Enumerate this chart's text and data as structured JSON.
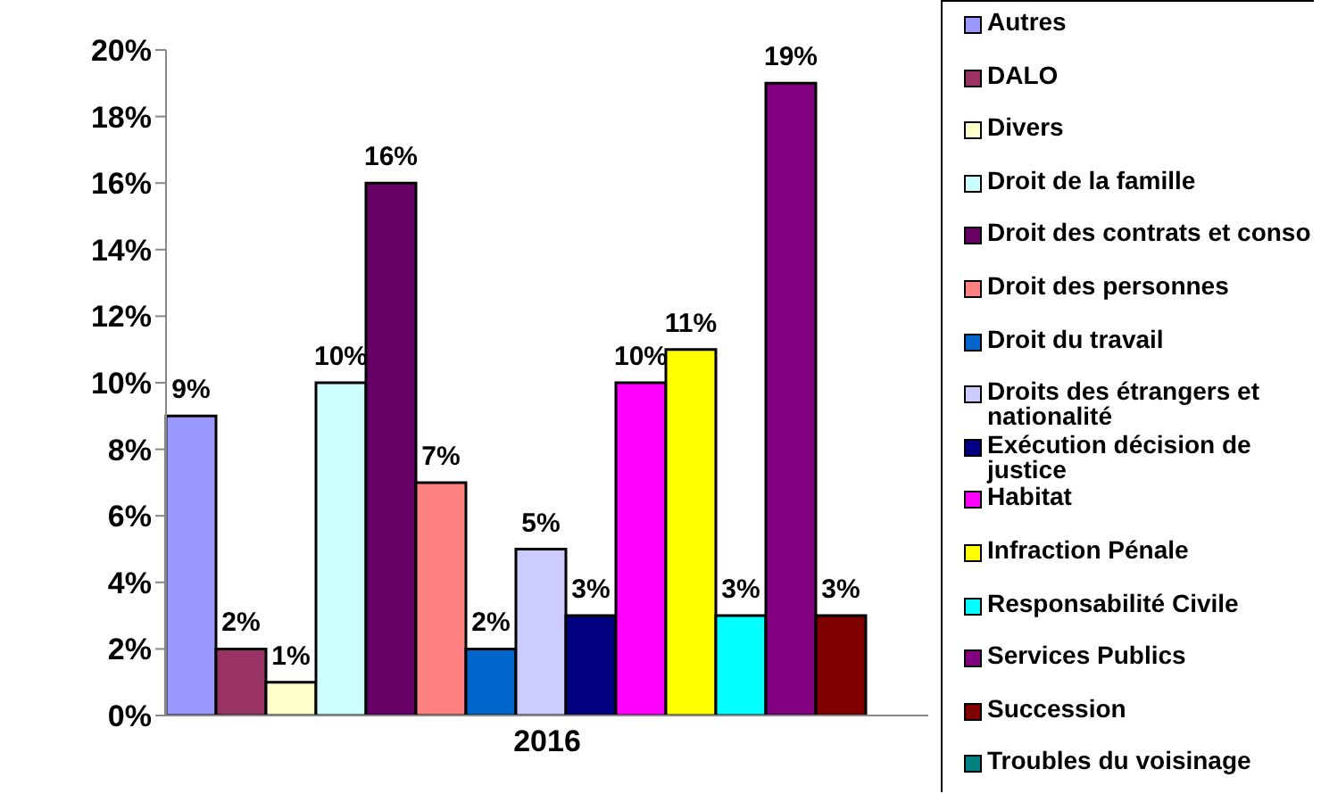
{
  "chart_data": {
    "type": "bar",
    "categories": [
      "2016"
    ],
    "ylim": [
      0,
      20
    ],
    "yticks": [
      {
        "value": 0,
        "label": "0%"
      },
      {
        "value": 2,
        "label": "2%"
      },
      {
        "value": 4,
        "label": "4%"
      },
      {
        "value": 6,
        "label": "6%"
      },
      {
        "value": 8,
        "label": "8%"
      },
      {
        "value": 10,
        "label": "10%"
      },
      {
        "value": 12,
        "label": "12%"
      },
      {
        "value": 14,
        "label": "14%"
      },
      {
        "value": 16,
        "label": "16%"
      },
      {
        "value": 18,
        "label": "18%"
      },
      {
        "value": 20,
        "label": "20%"
      }
    ],
    "grid": false,
    "legend": "right",
    "series": [
      {
        "name": "Autres",
        "color": "#9999ff",
        "values": [
          9
        ],
        "value_labels": [
          "9%"
        ]
      },
      {
        "name": "DALO",
        "color": "#993366",
        "values": [
          2
        ],
        "value_labels": [
          "2%"
        ]
      },
      {
        "name": "Divers",
        "color": "#ffffcc",
        "values": [
          1
        ],
        "value_labels": [
          "1%"
        ]
      },
      {
        "name": "Droit de la famille",
        "color": "#ccffff",
        "values": [
          10
        ],
        "value_labels": [
          "10%"
        ]
      },
      {
        "name": "Droit des contrats et conso",
        "color": "#660066",
        "values": [
          16
        ],
        "value_labels": [
          "16%"
        ]
      },
      {
        "name": "Droit des personnes",
        "color": "#ff8080",
        "values": [
          7
        ],
        "value_labels": [
          "7%"
        ]
      },
      {
        "name": "Droit du travail",
        "color": "#0066cc",
        "values": [
          2
        ],
        "value_labels": [
          "2%"
        ]
      },
      {
        "name": "Droits des étrangers et nationalité",
        "color": "#ccccff",
        "values": [
          5
        ],
        "value_labels": [
          "5%"
        ]
      },
      {
        "name": "Exécution décision de justice",
        "color": "#000080",
        "values": [
          3
        ],
        "value_labels": [
          "3%"
        ]
      },
      {
        "name": "Habitat",
        "color": "#ff00ff",
        "values": [
          10
        ],
        "value_labels": [
          "10%"
        ]
      },
      {
        "name": "Infraction Pénale",
        "color": "#ffff00",
        "values": [
          11
        ],
        "value_labels": [
          "11%"
        ]
      },
      {
        "name": "Responsabilité Civile",
        "color": "#00ffff",
        "values": [
          3
        ],
        "value_labels": [
          "3%"
        ]
      },
      {
        "name": "Services Publics",
        "color": "#800080",
        "values": [
          19
        ],
        "value_labels": [
          "19%"
        ]
      },
      {
        "name": "Succession",
        "color": "#800000",
        "values": [
          3
        ],
        "value_labels": [
          "3%"
        ]
      },
      {
        "name": "Troubles du voisinage",
        "color": "#008080",
        "values": [
          null
        ],
        "value_labels": [
          null
        ]
      }
    ]
  }
}
